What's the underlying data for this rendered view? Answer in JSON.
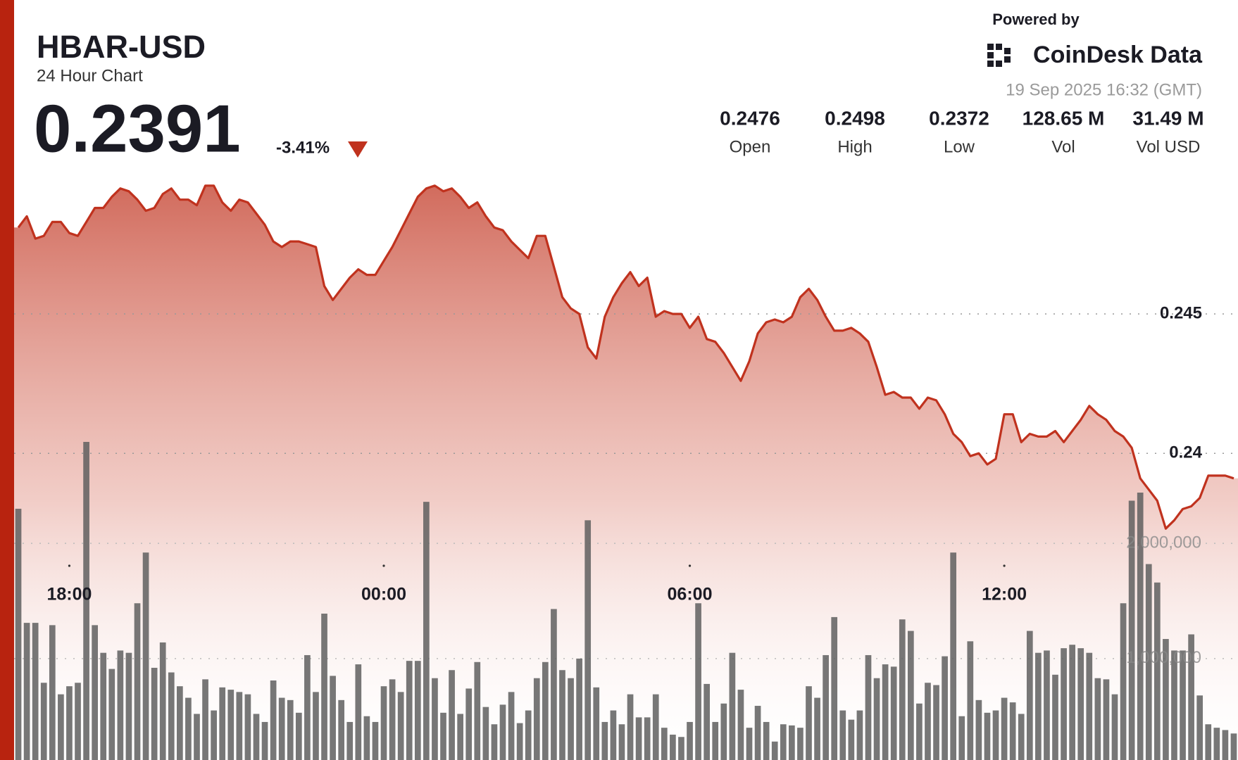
{
  "header": {
    "symbol": "HBAR-USD",
    "subtitle": "24 Hour Chart",
    "price": "0.2391",
    "change": "-3.41%",
    "powered_by": "Powered by",
    "brand": "CoinDesk Data",
    "timestamp": "19 Sep 2025 16:32 (GMT)"
  },
  "stats": [
    {
      "value": "0.2476",
      "label": "Open"
    },
    {
      "value": "0.2498",
      "label": "High"
    },
    {
      "value": "0.2372",
      "label": "Low"
    },
    {
      "value": "128.65 M",
      "label": "Vol"
    },
    {
      "value": "31.49 M",
      "label": "Vol USD"
    }
  ],
  "chart_data": {
    "type": "line",
    "categories": [
      null,
      null,
      null,
      null,
      null,
      null,
      "18:00",
      null,
      null,
      null,
      null,
      null,
      null,
      null,
      null,
      null,
      null,
      null,
      null,
      null,
      null,
      null,
      null,
      null,
      null,
      null,
      null,
      null,
      null,
      null,
      null,
      null,
      null,
      null,
      null,
      null,
      null,
      null,
      null,
      null,
      null,
      null,
      null,
      "00:00",
      null,
      null,
      null,
      null,
      null,
      null,
      null,
      null,
      null,
      null,
      null,
      null,
      null,
      null,
      null,
      null,
      null,
      null,
      null,
      null,
      null,
      null,
      null,
      null,
      null,
      null,
      null,
      null,
      null,
      null,
      null,
      null,
      null,
      null,
      null,
      "06:00",
      null,
      null,
      null,
      null,
      null,
      null,
      null,
      null,
      null,
      null,
      null,
      null,
      null,
      null,
      null,
      null,
      null,
      null,
      null,
      null,
      null,
      null,
      null,
      null,
      null,
      null,
      null,
      null,
      null,
      null,
      null,
      null,
      null,
      null,
      null,
      null,
      "12:00",
      null,
      null,
      null,
      null,
      null,
      null,
      null,
      null,
      null,
      null,
      null,
      null,
      null,
      null,
      null,
      null,
      null,
      null,
      null,
      null,
      null,
      null,
      null,
      null,
      null,
      null,
      null
    ],
    "series": [
      {
        "color": "#c0321e",
        "area": true,
        "values": [
          0.2481,
          0.2485,
          0.2477,
          0.2478,
          0.2483,
          0.2483,
          0.2479,
          0.2478,
          0.2483,
          0.2488,
          0.2488,
          0.2492,
          0.2495,
          0.2494,
          0.2491,
          0.2487,
          0.2488,
          0.2493,
          0.2495,
          0.2491,
          0.2491,
          0.2489,
          0.2496,
          0.2496,
          0.249,
          0.2487,
          0.2491,
          0.249,
          0.2486,
          0.2482,
          0.2476,
          0.2474,
          0.2476,
          0.2476,
          0.2475,
          0.2474,
          0.246,
          0.2455,
          0.2459,
          0.2463,
          0.2466,
          0.2464,
          0.2464,
          0.2469,
          0.2474,
          0.248,
          0.2486,
          0.2492,
          0.2495,
          0.2496,
          0.2494,
          0.2495,
          0.2492,
          0.2488,
          0.249,
          0.2485,
          0.2481,
          0.248,
          0.2476,
          0.2473,
          0.247,
          0.2478,
          0.2478,
          0.2467,
          0.2456,
          0.2452,
          0.245,
          0.2438,
          0.2434,
          0.2449,
          0.2456,
          0.2461,
          0.2465,
          0.246,
          0.2463,
          0.2449,
          0.2451,
          0.245,
          0.245,
          0.2445,
          0.2449,
          0.2441,
          0.244,
          0.2436,
          0.2431,
          0.2426,
          0.2433,
          0.2443,
          0.2447,
          0.2448,
          0.2447,
          0.2449,
          0.2456,
          0.2459,
          0.2455,
          0.2449,
          0.2444,
          0.2444,
          0.2445,
          0.2443,
          0.244,
          0.2431,
          0.2421,
          0.2422,
          0.242,
          0.242,
          0.2416,
          0.242,
          0.2419,
          0.2414,
          0.2407,
          0.2404,
          0.2399,
          0.24,
          0.2396,
          0.2398,
          0.2414,
          0.2414,
          0.2404,
          0.2407,
          0.2406,
          0.2406,
          0.2408,
          0.2404,
          0.2408,
          0.2412,
          0.2417,
          0.2414,
          0.2412,
          0.2408,
          0.2406,
          0.2402,
          0.2391,
          0.2387,
          0.2383,
          0.2373,
          0.2376,
          0.238,
          0.2381,
          0.2384,
          0.2392,
          0.2392,
          0.2392,
          0.2391
        ]
      },
      {
        "color": "#5f5f5f",
        "axis": "y2",
        "type": "bar",
        "values": [
          2300000,
          1310000,
          1310000,
          790000,
          1290000,
          690000,
          760000,
          790000,
          2880000,
          1290000,
          1050000,
          910000,
          1070000,
          1050000,
          1480000,
          1920000,
          920000,
          1140000,
          880000,
          760000,
          660000,
          520000,
          820000,
          550000,
          750000,
          730000,
          710000,
          690000,
          520000,
          450000,
          810000,
          660000,
          640000,
          530000,
          1030000,
          710000,
          1390000,
          850000,
          640000,
          450000,
          950000,
          500000,
          450000,
          760000,
          820000,
          710000,
          980000,
          980000,
          2360000,
          830000,
          530000,
          900000,
          520000,
          740000,
          970000,
          580000,
          430000,
          600000,
          710000,
          440000,
          550000,
          830000,
          970000,
          1430000,
          900000,
          830000,
          1000000,
          2200000,
          750000,
          450000,
          550000,
          430000,
          690000,
          490000,
          490000,
          690000,
          400000,
          340000,
          320000,
          450000,
          1480000,
          780000,
          450000,
          610000,
          1050000,
          730000,
          400000,
          590000,
          450000,
          280000,
          430000,
          420000,
          400000,
          760000,
          660000,
          1030000,
          1360000,
          550000,
          470000,
          550000,
          1030000,
          830000,
          950000,
          930000,
          1340000,
          1240000,
          610000,
          790000,
          770000,
          1020000,
          1920000,
          500000,
          1150000,
          640000,
          530000,
          550000,
          660000,
          620000,
          520000,
          1240000,
          1050000,
          1070000,
          860000,
          1090000,
          1120000,
          1090000,
          1050000,
          830000,
          820000,
          690000,
          1480000,
          2370000,
          2440000,
          1820000,
          1660000,
          1170000,
          1070000,
          1070000,
          1210000,
          680000,
          430000,
          400000,
          380000,
          350000
        ]
      }
    ],
    "ylim": [
      0.229,
      0.25
    ],
    "yticks": [
      0.24,
      0.245
    ],
    "y2lim": [
      120000,
      5200000
    ],
    "y2ticks": [
      {
        "value": 1000000,
        "label": "1,000,000"
      },
      {
        "value": 2000000,
        "label": "2,000,000"
      }
    ],
    "grid": true
  }
}
